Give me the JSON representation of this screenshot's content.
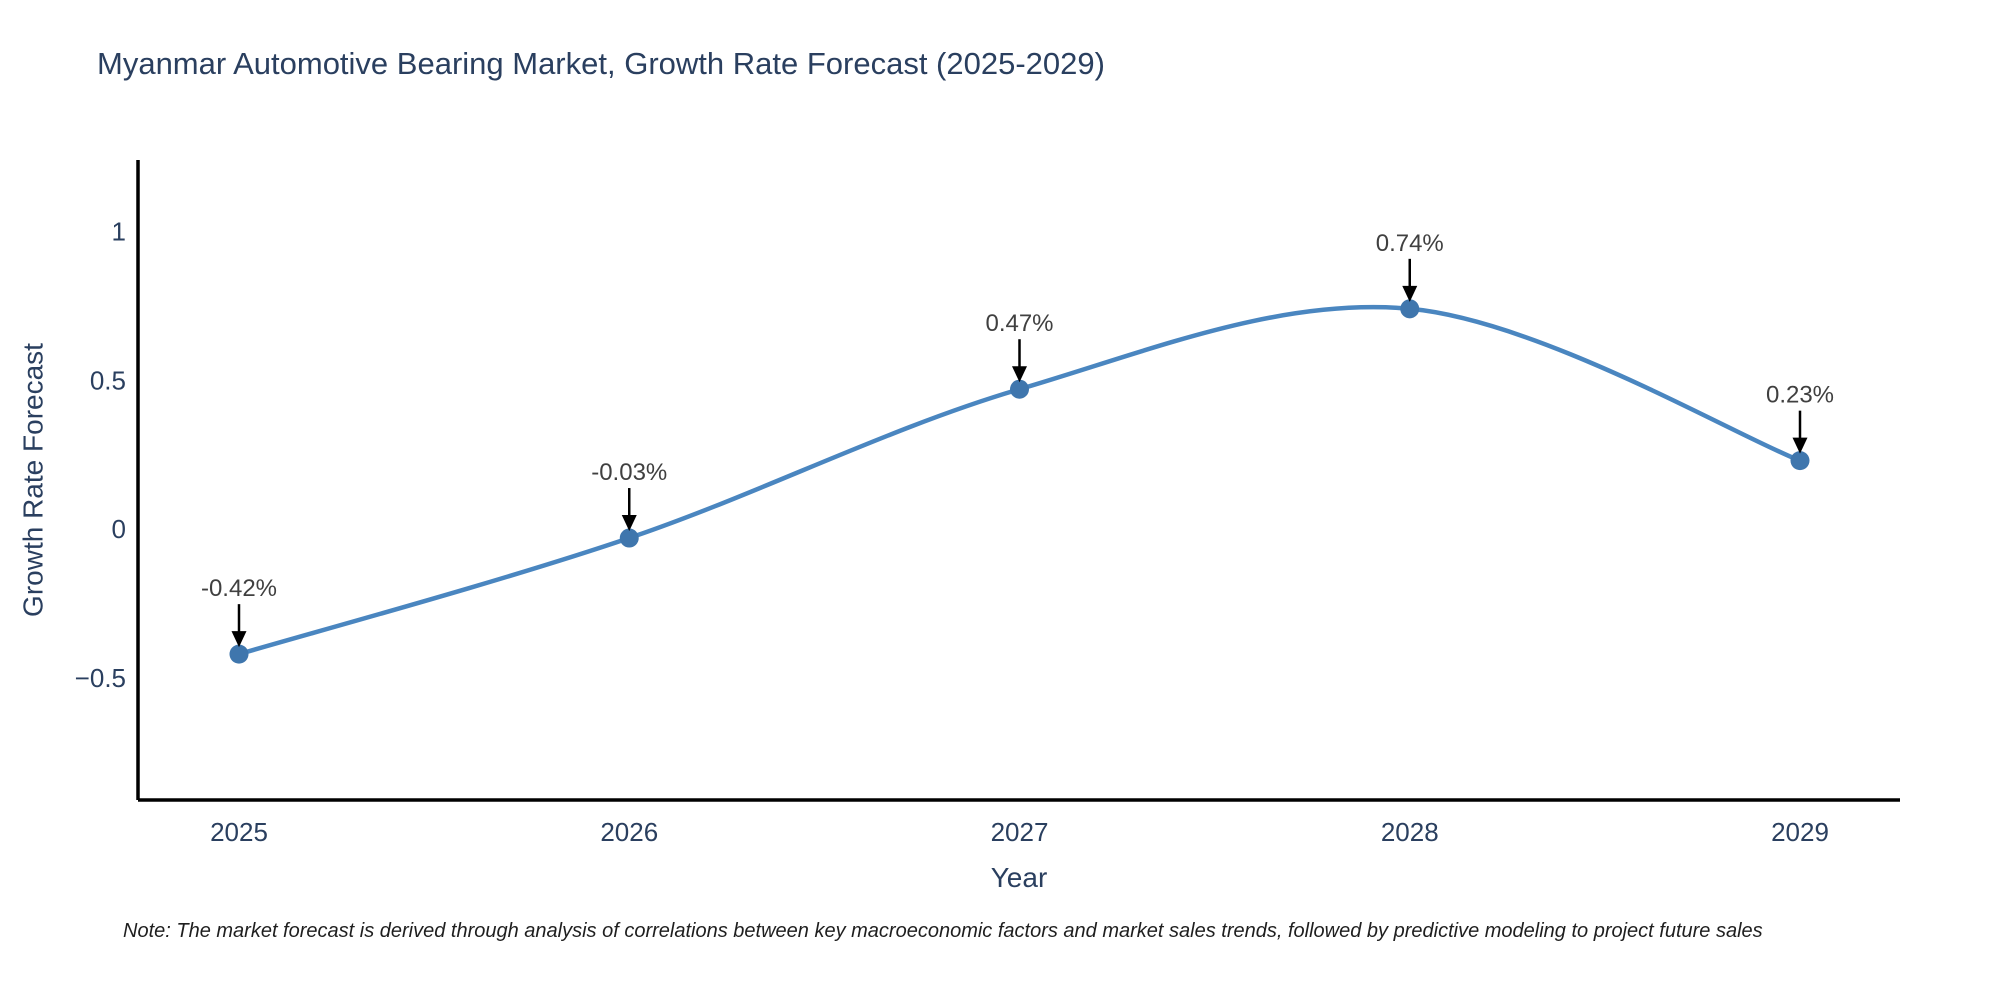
{
  "page": {
    "title": "Myanmar Automotive Bearing Market, Growth Rate Forecast (2025-2029)",
    "note": "Note: The market forecast is derived through analysis of correlations between key macroeconomic factors and market sales trends, followed by predictive modeling to project future sales"
  },
  "chart_data": {
    "type": "line",
    "title": "Myanmar Automotive Bearing Market, Growth Rate Forecast (2025-2029)",
    "xlabel": "Year",
    "ylabel": "Growth Rate Forecast",
    "categories": [
      "2025",
      "2026",
      "2027",
      "2028",
      "2029"
    ],
    "series": [
      {
        "name": "Growth Rate Forecast",
        "values": [
          -0.42,
          -0.03,
          0.47,
          0.74,
          0.23
        ],
        "point_labels": [
          "-0.42%",
          "-0.03%",
          "0.47%",
          "0.74%",
          "0.23%"
        ]
      }
    ],
    "ylim": [
      -0.91,
      1.24
    ],
    "yticks": {
      "values": [
        -0.5,
        0,
        0.5,
        1
      ],
      "labels": [
        "−0.5",
        "0",
        "0.5",
        "1"
      ]
    },
    "grid": false,
    "legend_position": "none",
    "line_shape": "spline",
    "colors": {
      "line": "#4a86c0",
      "marker": "#3f76ad",
      "axis": "#000000",
      "tick_text": "#2a3f5f",
      "axis_title_text": "#2a3f5f",
      "annotation_text": "#404040",
      "arrow": "#000000"
    }
  }
}
